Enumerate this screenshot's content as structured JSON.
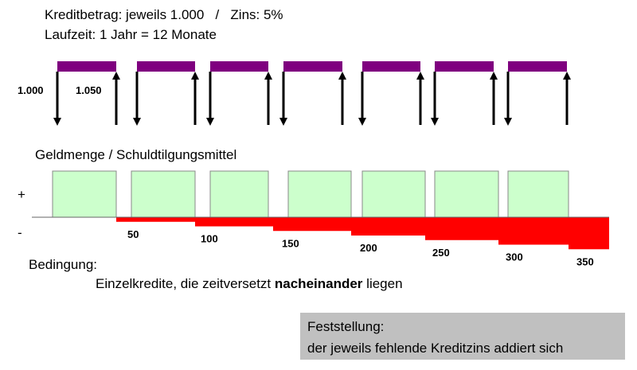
{
  "header": {
    "line1": "Kreditbetrag: jeweils 1.000   /   Zins: 5%",
    "line2": "Laufzeit: 1 Jahr = 12 Monate"
  },
  "credit_labels": {
    "out": "1.000",
    "back": "1.050"
  },
  "money": {
    "title": "Geldmenge / Schuldtilgungsmittel",
    "plus": "+",
    "minus": "-",
    "deficits": [
      50,
      100,
      150,
      200,
      250,
      300,
      350
    ]
  },
  "condition": {
    "title": "Bedingung:",
    "parts": [
      "Einzelkredite, die zeitversetzt ",
      "nacheinander",
      " liegen"
    ]
  },
  "finding": {
    "title": "Feststellung:",
    "text": "der jeweils fehlende Kreditzins addiert sich"
  }
}
